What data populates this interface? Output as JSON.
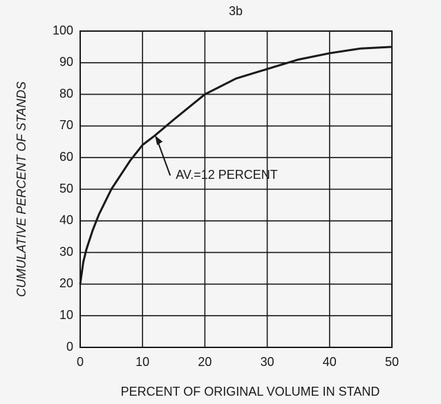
{
  "chart_data": {
    "type": "line",
    "title": "3b",
    "x": [
      0,
      0.5,
      1,
      2,
      3,
      4,
      5,
      6,
      8,
      10,
      12,
      15,
      20,
      25,
      30,
      35,
      40,
      45,
      50
    ],
    "series": [
      {
        "name": "Cumulative percent",
        "color": "#1a1a1a",
        "values": [
          20,
          27,
          31,
          37,
          42,
          46,
          50,
          53,
          59,
          64,
          67,
          72,
          80,
          85,
          88,
          91,
          93,
          94.5,
          95
        ]
      }
    ],
    "xlim": [
      0,
      50
    ],
    "ylim": [
      0,
      100
    ],
    "xticks": [
      0,
      10,
      20,
      30,
      40,
      50
    ],
    "yticks": [
      0,
      10,
      20,
      30,
      40,
      50,
      60,
      70,
      80,
      90,
      100
    ],
    "xlabel": "PERCENT OF ORIGINAL VOLUME IN STAND",
    "ylabel": "CUMULATIVE PERCENT OF STANDS",
    "annotation": {
      "text": "AV.=12 PERCENT",
      "x": 12,
      "y": 67
    },
    "grid": true
  }
}
